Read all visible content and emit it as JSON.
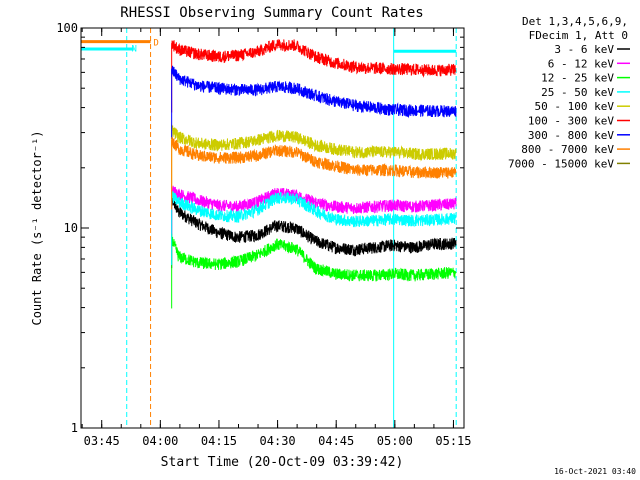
{
  "chart_data": {
    "type": "line",
    "title": "RHESSI Observing Summary Count Rates",
    "xlabel": "Start Time (20-Oct-09 03:39:42)",
    "ylabel": "Count Rate (s⁻¹ detector⁻¹)",
    "y_scale": "log",
    "ylim": [
      1,
      100
    ],
    "x_unit": "minutes since 03:39:42",
    "xlim": [
      0,
      98
    ],
    "x_ticks": [
      {
        "value": 5.3,
        "label": "03:45"
      },
      {
        "value": 20.3,
        "label": "04:00"
      },
      {
        "value": 35.3,
        "label": "04:15"
      },
      {
        "value": 50.3,
        "label": "04:30"
      },
      {
        "value": 65.3,
        "label": "04:45"
      },
      {
        "value": 80.3,
        "label": "05:00"
      },
      {
        "value": 95.3,
        "label": "05:15"
      }
    ],
    "y_ticks": [
      {
        "value": 1,
        "label": "1"
      },
      {
        "value": 10,
        "label": "10"
      },
      {
        "value": 100,
        "label": "100"
      }
    ],
    "legend": {
      "placement": "right",
      "header": [
        "Det 1,3,4,5,6,9,",
        "FDecim 1, Att 0"
      ]
    },
    "series": [
      {
        "name": "3 - 6 keV",
        "color": "#000000",
        "points": [
          [
            23.2,
            14
          ],
          [
            25,
            12
          ],
          [
            30,
            10.5
          ],
          [
            35,
            9.5
          ],
          [
            40,
            9
          ],
          [
            45,
            9.2
          ],
          [
            50,
            10.3
          ],
          [
            55,
            10
          ],
          [
            60,
            8.6
          ],
          [
            65,
            8
          ],
          [
            70,
            7.8
          ],
          [
            75,
            8
          ],
          [
            80,
            8.2
          ],
          [
            85,
            8
          ],
          [
            90,
            8.3
          ],
          [
            96,
            8.4
          ]
        ]
      },
      {
        "name": "6 - 12 keV",
        "color": "#ff00ff",
        "points": [
          [
            23.2,
            15.5
          ],
          [
            25,
            14.8
          ],
          [
            30,
            13.8
          ],
          [
            35,
            13
          ],
          [
            40,
            12.8
          ],
          [
            45,
            13.5
          ],
          [
            50,
            15
          ],
          [
            55,
            14.6
          ],
          [
            60,
            13.4
          ],
          [
            65,
            12.8
          ],
          [
            70,
            12.6
          ],
          [
            75,
            12.8
          ],
          [
            80,
            13
          ],
          [
            85,
            12.8
          ],
          [
            90,
            13
          ],
          [
            96,
            13.2
          ]
        ]
      },
      {
        "name": "12 - 25 keV",
        "color": "#00ff00",
        "points": [
          [
            23.2,
            8.8
          ],
          [
            25,
            7.2
          ],
          [
            30,
            6.7
          ],
          [
            35,
            6.6
          ],
          [
            40,
            6.8
          ],
          [
            45,
            7.3
          ],
          [
            50,
            8.3
          ],
          [
            55,
            7.9
          ],
          [
            60,
            6.3
          ],
          [
            65,
            5.9
          ],
          [
            70,
            5.8
          ],
          [
            75,
            5.8
          ],
          [
            80,
            5.9
          ],
          [
            85,
            5.8
          ],
          [
            90,
            5.9
          ],
          [
            96,
            6
          ]
        ]
      },
      {
        "name": "25 - 50 keV",
        "color": "#00ffff",
        "points": [
          [
            23.2,
            14.5
          ],
          [
            25,
            13.5
          ],
          [
            30,
            12.3
          ],
          [
            35,
            11.6
          ],
          [
            40,
            11.4
          ],
          [
            45,
            12.3
          ],
          [
            50,
            14.2
          ],
          [
            55,
            14
          ],
          [
            60,
            12.2
          ],
          [
            65,
            11.1
          ],
          [
            70,
            10.8
          ],
          [
            75,
            10.9
          ],
          [
            80,
            11.1
          ],
          [
            85,
            10.9
          ],
          [
            90,
            11
          ],
          [
            96,
            11.2
          ]
        ],
        "attenuator_segments": [
          [
            [
              0,
              78.5
            ],
            [
              13.5,
              78.5
            ]
          ],
          [
            [
              80,
              76.5
            ],
            [
              96,
              76.5
            ]
          ]
        ]
      },
      {
        "name": "50 - 100 keV",
        "color": "#cccc00",
        "points": [
          [
            23.2,
            31
          ],
          [
            25,
            28.5
          ],
          [
            30,
            26.5
          ],
          [
            35,
            26
          ],
          [
            40,
            26.5
          ],
          [
            45,
            27.5
          ],
          [
            50,
            29
          ],
          [
            55,
            28.5
          ],
          [
            60,
            26
          ],
          [
            65,
            24.8
          ],
          [
            70,
            24
          ],
          [
            75,
            24
          ],
          [
            80,
            24
          ],
          [
            85,
            23.5
          ],
          [
            90,
            23.5
          ],
          [
            96,
            23.6
          ]
        ]
      },
      {
        "name": "100 - 300 keV",
        "color": "#ff0000",
        "points": [
          [
            23.2,
            84
          ],
          [
            25,
            78
          ],
          [
            30,
            74
          ],
          [
            35,
            72
          ],
          [
            40,
            73
          ],
          [
            45,
            76
          ],
          [
            50,
            83
          ],
          [
            55,
            82
          ],
          [
            60,
            72
          ],
          [
            65,
            67
          ],
          [
            70,
            64
          ],
          [
            75,
            63
          ],
          [
            80,
            62.5
          ],
          [
            85,
            62
          ],
          [
            90,
            61.5
          ],
          [
            96,
            62
          ]
        ]
      },
      {
        "name": "300 - 800 keV",
        "color": "#0000ff",
        "points": [
          [
            23.2,
            62
          ],
          [
            25,
            56
          ],
          [
            30,
            51.5
          ],
          [
            35,
            50
          ],
          [
            40,
            49.2
          ],
          [
            45,
            49
          ],
          [
            50,
            51
          ],
          [
            55,
            50
          ],
          [
            60,
            46
          ],
          [
            65,
            43
          ],
          [
            70,
            41
          ],
          [
            75,
            40
          ],
          [
            80,
            39
          ],
          [
            85,
            38.8
          ],
          [
            90,
            38.5
          ],
          [
            96,
            38.5
          ]
        ]
      },
      {
        "name": "800 - 7000 keV",
        "color": "#ff8000",
        "points": [
          [
            23.2,
            27.5
          ],
          [
            25,
            25
          ],
          [
            30,
            23
          ],
          [
            35,
            22.5
          ],
          [
            40,
            22.5
          ],
          [
            45,
            23
          ],
          [
            50,
            24.5
          ],
          [
            55,
            24
          ],
          [
            60,
            21.5
          ],
          [
            65,
            20.5
          ],
          [
            70,
            19.5
          ],
          [
            75,
            19.5
          ],
          [
            80,
            19.5
          ],
          [
            85,
            19
          ],
          [
            90,
            19
          ],
          [
            96,
            19
          ]
        ],
        "attenuator_segments": [
          [
            [
              0,
              85.5
            ],
            [
              17.8,
              85.5
            ]
          ]
        ]
      },
      {
        "name": "7000 - 15000 keV",
        "color": "#808000",
        "points": []
      }
    ],
    "markers": [
      {
        "type": "dashed_vertical",
        "color": "#00ffff",
        "x": 11.7
      },
      {
        "type": "dashed_vertical",
        "color": "#ff8000",
        "x": 17.8
      },
      {
        "type": "solid_vertical",
        "color": "#00ffff",
        "x": 80
      },
      {
        "type": "dashed_vertical",
        "color": "#00ffff",
        "x": 96
      }
    ],
    "annotations": [
      {
        "text": "N",
        "color": "#00ffff",
        "x": 13.6,
        "y": 80
      },
      {
        "text": "D",
        "color": "#ff8000",
        "x": 19.2,
        "y": 85.5
      }
    ],
    "footer_text": "16-Oct-2021 03:40"
  }
}
